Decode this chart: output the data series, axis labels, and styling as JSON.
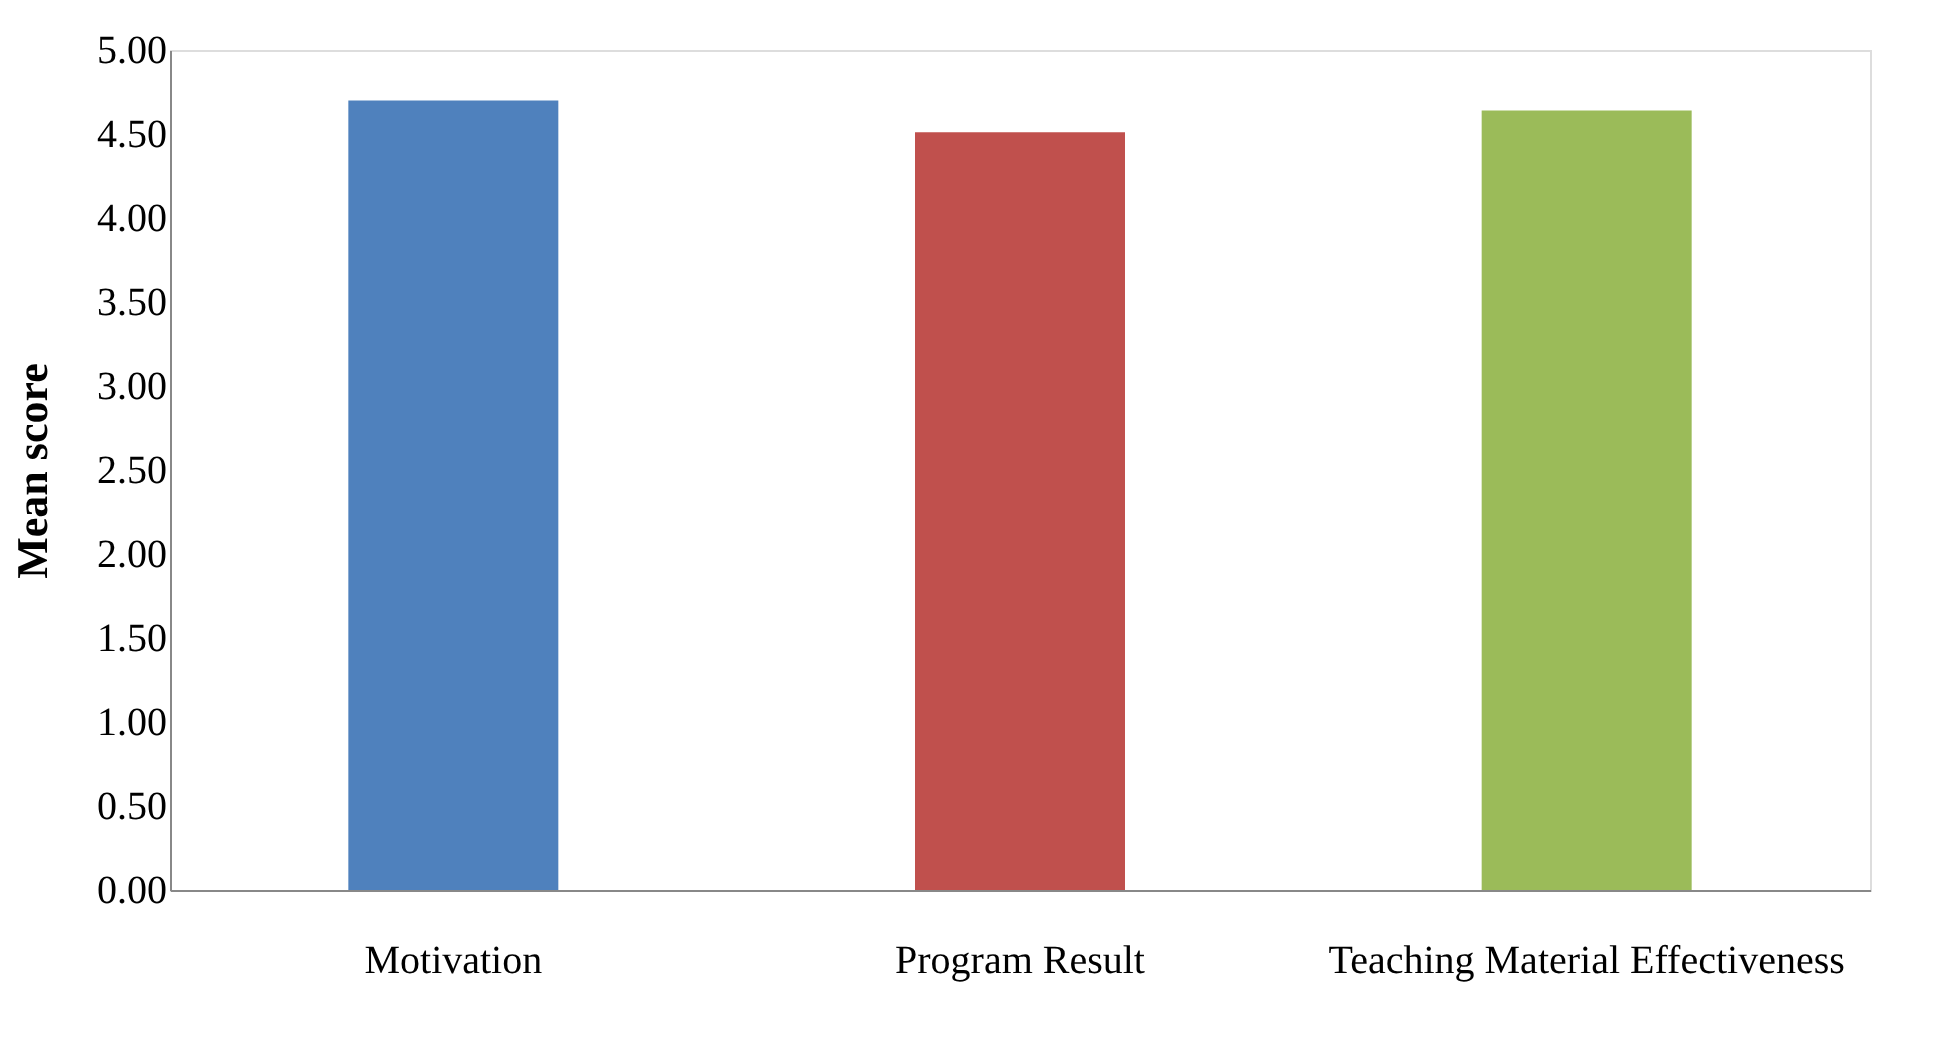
{
  "chart_data": {
    "type": "bar",
    "ylabel": "Mean score",
    "categories": [
      "Motivation",
      "Program Result",
      "Teaching Material Effectiveness"
    ],
    "values": [
      4.7,
      4.51,
      4.64
    ],
    "colors": [
      "#4f81bd",
      "#c0504d",
      "#9bbb59"
    ],
    "ylim": [
      0,
      5
    ],
    "yticks": [
      {
        "value": 0,
        "label": "0.00"
      },
      {
        "value": 0.5,
        "label": "0.50"
      },
      {
        "value": 1,
        "label": "1.00"
      },
      {
        "value": 1.5,
        "label": "1.50"
      },
      {
        "value": 2,
        "label": "2.00"
      },
      {
        "value": 2.5,
        "label": "2.50"
      },
      {
        "value": 3,
        "label": "3.00"
      },
      {
        "value": 3.5,
        "label": "3.50"
      },
      {
        "value": 4,
        "label": "4.00"
      },
      {
        "value": 4.5,
        "label": "4.50"
      },
      {
        "value": 5,
        "label": "5.00"
      }
    ],
    "grid": false,
    "legend": false
  }
}
